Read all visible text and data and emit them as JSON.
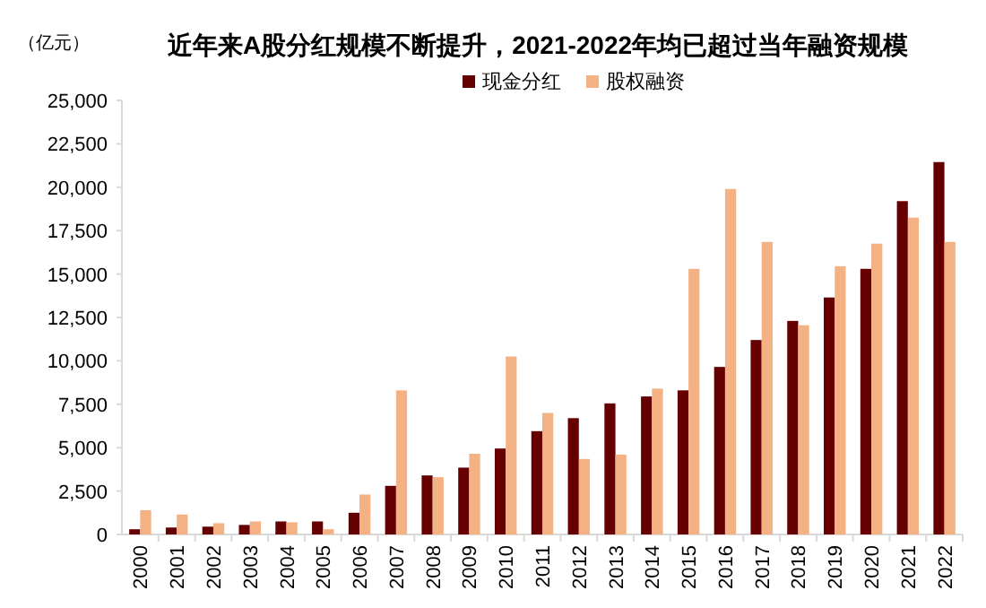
{
  "chart_data": {
    "type": "bar",
    "title": "近年来A股分红规模不断提升，2021-2022年均已超过当年融资规模",
    "ylabel": "（亿元）",
    "categories": [
      "2000",
      "2001",
      "2002",
      "2003",
      "2004",
      "2005",
      "2006",
      "2007",
      "2008",
      "2009",
      "2010",
      "2011",
      "2012",
      "2013",
      "2014",
      "2015",
      "2016",
      "2017",
      "2018",
      "2019",
      "2020",
      "2021",
      "2022"
    ],
    "series": [
      {
        "name": "现金分红",
        "color": "#660000",
        "values": [
          300,
          400,
          450,
          550,
          750,
          750,
          1250,
          2800,
          3400,
          3850,
          4950,
          5950,
          6700,
          7550,
          7950,
          8300,
          9650,
          11200,
          12300,
          13650,
          15300,
          19200,
          21450
        ]
      },
      {
        "name": "股权融资",
        "color": "#f4b183",
        "values": [
          1400,
          1150,
          650,
          750,
          700,
          300,
          2300,
          8300,
          3300,
          4650,
          10250,
          7000,
          4350,
          4600,
          8400,
          15300,
          19900,
          16850,
          12050,
          15450,
          16750,
          18250,
          16850
        ]
      }
    ],
    "ylim": [
      0,
      25000
    ],
    "yticks": [
      {
        "value": 0,
        "label": "0"
      },
      {
        "value": 2500,
        "label": "2,500"
      },
      {
        "value": 5000,
        "label": "5,000"
      },
      {
        "value": 7500,
        "label": "7,500"
      },
      {
        "value": 10000,
        "label": "10,000"
      },
      {
        "value": 12500,
        "label": "12,500"
      },
      {
        "value": 15000,
        "label": "15,000"
      },
      {
        "value": 17500,
        "label": "17,500"
      },
      {
        "value": 20000,
        "label": "20,000"
      },
      {
        "value": 22500,
        "label": "22,500"
      },
      {
        "value": 25000,
        "label": "25,000"
      }
    ],
    "legend": "top",
    "grid": false
  }
}
